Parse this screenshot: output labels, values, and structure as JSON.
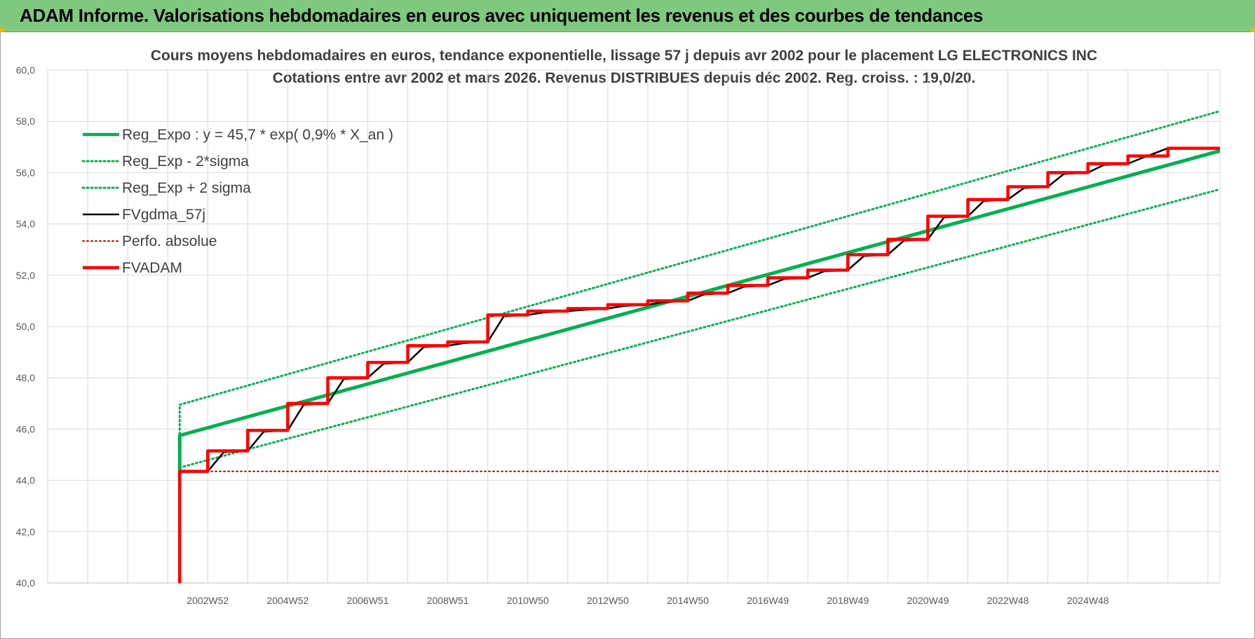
{
  "page": {
    "banner_title": "ADAM Informe. Valorisations hebdomadaires en euros avec uniquement les revenus et des courbes de tendances"
  },
  "chart_data": {
    "type": "line",
    "title": [
      "Cours moyens hebdomadaires en euros, tendance exponentielle, lissage 57 j depuis avr 2002 pour le placement LG ELECTRONICS INC",
      "Cotations entre avr 2002 et mars 2026. Revenus DISTRIBUES depuis déc 2002. Reg. croiss. : 19,0/20."
    ],
    "xlabel": "",
    "ylabel": "",
    "x_range": [
      1998.0,
      2027.3
    ],
    "ylim": [
      40,
      60
    ],
    "y_ticks": [
      "40,0",
      "42,0",
      "44,0",
      "46,0",
      "48,0",
      "50,0",
      "52,0",
      "54,0",
      "56,0",
      "58,0",
      "60,0"
    ],
    "x_ticks": [
      {
        "label": "2002W52",
        "x": 2002.0
      },
      {
        "label": "2004W52",
        "x": 2004.0
      },
      {
        "label": "2006W51",
        "x": 2006.0
      },
      {
        "label": "2008W51",
        "x": 2008.0
      },
      {
        "label": "2010W50",
        "x": 2010.0
      },
      {
        "label": "2012W50",
        "x": 2012.0
      },
      {
        "label": "2014W50",
        "x": 2014.0
      },
      {
        "label": "2016W49",
        "x": 2016.0
      },
      {
        "label": "2018W49",
        "x": 2018.0
      },
      {
        "label": "2020W49",
        "x": 2020.0
      },
      {
        "label": "2022W48",
        "x": 2022.0
      },
      {
        "label": "2024W48",
        "x": 2024.0
      }
    ],
    "grid": true,
    "legend_position": "top-left",
    "series": [
      {
        "name": "Reg_Expo : y = 45,7 * exp( 0,9% *  X_an )",
        "color": "#00b050",
        "style": "solid",
        "x": [
          2001.3,
          2001.3,
          2027.3
        ],
        "y": [
          44.2,
          45.75,
          56.85
        ]
      },
      {
        "name": "Reg_Exp - 2*sigma",
        "color": "#00b050",
        "style": "dotted",
        "x": [
          2001.3,
          2027.3
        ],
        "y": [
          44.5,
          55.35
        ]
      },
      {
        "name": "Reg_Exp + 2 sigma",
        "color": "#00b050",
        "style": "dotted",
        "x": [
          2001.3,
          2001.3,
          2027.3
        ],
        "y": [
          44.5,
          46.95,
          58.4
        ]
      },
      {
        "name": "FVgdma_57j",
        "color": "#000000",
        "style": "solid",
        "x": [
          2001.3,
          2001.3,
          2002.0,
          2002.4,
          2003.0,
          2003.4,
          2004.0,
          2004.4,
          2005.0,
          2005.4,
          2006.0,
          2006.4,
          2007.0,
          2007.4,
          2008.0,
          2008.4,
          2009.0,
          2009.4,
          2010.0,
          2010.4,
          2011.0,
          2011.4,
          2012.0,
          2012.4,
          2013.0,
          2013.4,
          2014.0,
          2014.4,
          2015.0,
          2015.4,
          2016.0,
          2016.4,
          2017.0,
          2017.4,
          2018.0,
          2018.4,
          2019.0,
          2019.4,
          2020.0,
          2020.4,
          2021.0,
          2021.4,
          2022.0,
          2022.4,
          2023.0,
          2023.4,
          2024.0,
          2024.4,
          2025.0,
          2025.4,
          2026.0,
          2027.3
        ],
        "y": [
          40.0,
          44.35,
          44.35,
          45.1,
          45.15,
          45.9,
          45.95,
          46.95,
          47.0,
          47.95,
          48.0,
          48.55,
          48.6,
          49.2,
          49.25,
          49.35,
          49.4,
          50.4,
          50.45,
          50.55,
          50.6,
          50.65,
          50.7,
          50.8,
          50.85,
          50.95,
          51.0,
          51.25,
          51.3,
          51.55,
          51.6,
          51.85,
          51.9,
          52.15,
          52.2,
          52.75,
          52.8,
          53.35,
          53.4,
          54.25,
          54.3,
          54.9,
          54.95,
          55.4,
          55.45,
          55.95,
          56.0,
          56.3,
          56.35,
          56.6,
          56.95,
          56.95
        ]
      },
      {
        "name": "Perfo. absolue",
        "color": "#c00000",
        "style": "dotted",
        "x": [
          2001.3,
          2001.3,
          2027.3
        ],
        "y": [
          40.0,
          44.35,
          44.35
        ]
      },
      {
        "name": "FVADAM",
        "color": "#ff0000",
        "style": "solid",
        "x": [
          2001.3,
          2001.3,
          2002.0,
          2002.0,
          2003.0,
          2003.0,
          2004.0,
          2004.0,
          2005.0,
          2005.0,
          2006.0,
          2006.0,
          2007.0,
          2007.0,
          2008.0,
          2008.0,
          2009.0,
          2009.0,
          2010.0,
          2010.0,
          2011.0,
          2011.0,
          2012.0,
          2012.0,
          2013.0,
          2013.0,
          2014.0,
          2014.0,
          2015.0,
          2015.0,
          2016.0,
          2016.0,
          2017.0,
          2017.0,
          2018.0,
          2018.0,
          2019.0,
          2019.0,
          2020.0,
          2020.0,
          2021.0,
          2021.0,
          2022.0,
          2022.0,
          2023.0,
          2023.0,
          2024.0,
          2024.0,
          2025.0,
          2025.0,
          2026.0,
          2026.0,
          2027.3
        ],
        "y": [
          40.0,
          44.35,
          44.35,
          45.15,
          45.15,
          45.95,
          45.95,
          47.0,
          47.0,
          48.0,
          48.0,
          48.6,
          48.6,
          49.25,
          49.25,
          49.4,
          49.4,
          50.45,
          50.45,
          50.6,
          50.6,
          50.7,
          50.7,
          50.85,
          50.85,
          51.0,
          51.0,
          51.3,
          51.3,
          51.6,
          51.6,
          51.9,
          51.9,
          52.2,
          52.2,
          52.8,
          52.8,
          53.4,
          53.4,
          54.3,
          54.3,
          54.95,
          54.95,
          55.45,
          55.45,
          56.0,
          56.0,
          56.35,
          56.35,
          56.65,
          56.65,
          56.95,
          56.95
        ]
      }
    ]
  }
}
